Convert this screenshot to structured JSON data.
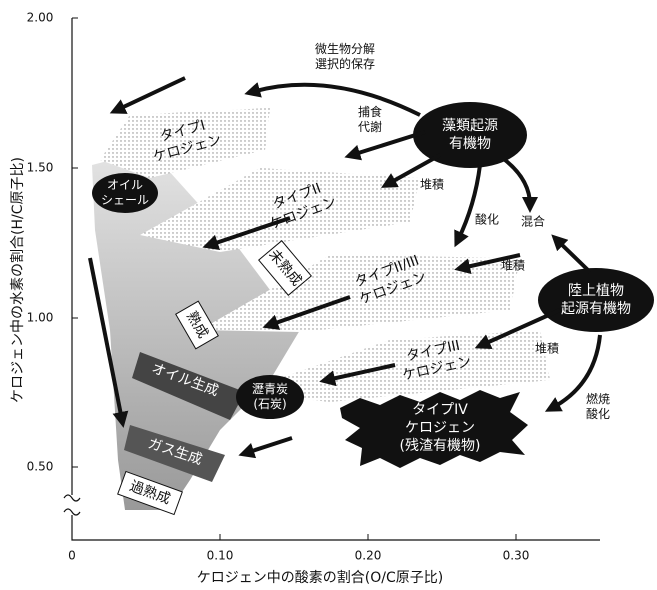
{
  "axes": {
    "x_label": "ケロジェン中の酸素の割合(O/C原子比)",
    "y_label": "ケロジェン中の水素の割合(H/C原子比)",
    "x_ticks": [
      "0",
      "0.10",
      "0.20",
      "0.30"
    ],
    "y_ticks": [
      "2.00",
      "1.50",
      "1.00",
      "0.50"
    ]
  },
  "labels": [
    {
      "lines": [
        "微生物分解",
        "選択的保存"
      ]
    },
    {
      "lines": [
        "捕食",
        "代謝"
      ]
    },
    {
      "lines": [
        "藻類起源",
        "有機物"
      ]
    },
    {
      "lines": [
        "堆積"
      ]
    },
    {
      "lines": [
        "酸化"
      ]
    },
    {
      "lines": [
        "混合"
      ]
    },
    {
      "lines": [
        "堆積"
      ]
    },
    {
      "lines": [
        "陸上植物",
        "起源有機物"
      ]
    },
    {
      "lines": [
        "堆積"
      ]
    },
    {
      "lines": [
        "燃焼",
        "酸化"
      ]
    },
    {
      "lines": [
        "タイプI",
        "ケロジェン"
      ]
    },
    {
      "lines": [
        "タイプII",
        "ケロジェン"
      ]
    },
    {
      "lines": [
        "未熟成"
      ]
    },
    {
      "lines": [
        "タイプII/III",
        "ケロジェン"
      ]
    },
    {
      "lines": [
        "タイプIII",
        "ケロジェン"
      ]
    },
    {
      "lines": [
        "タイプIV",
        "ケロジェン",
        "(残渣有機物)"
      ]
    },
    {
      "lines": [
        "オイル",
        "シェール"
      ]
    },
    {
      "lines": [
        "熟成"
      ]
    },
    {
      "lines": [
        "オイル生成"
      ]
    },
    {
      "lines": [
        "瀝青炭",
        "(石炭)"
      ]
    },
    {
      "lines": [
        "ガス生成"
      ]
    },
    {
      "lines": [
        "過熟成"
      ]
    }
  ]
}
